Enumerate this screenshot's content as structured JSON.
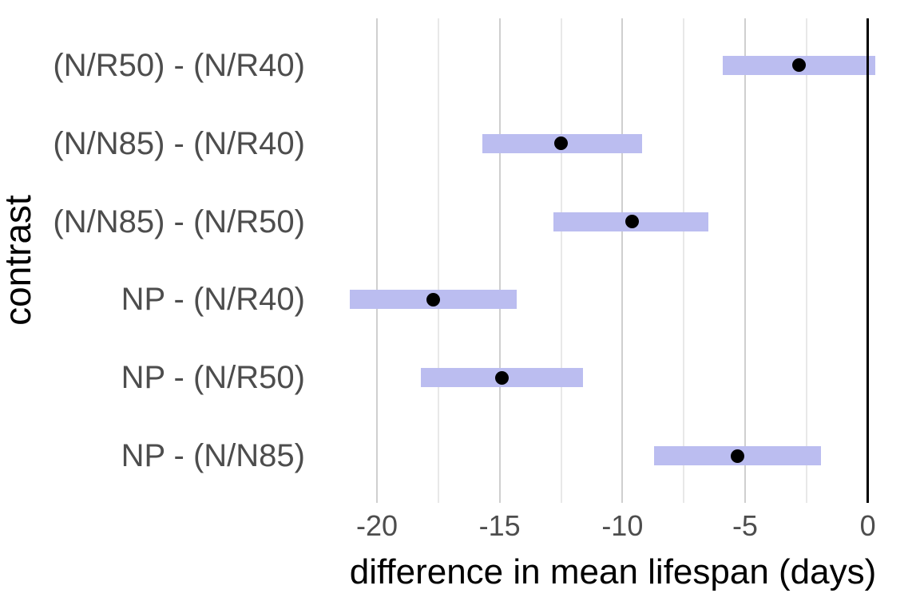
{
  "chart_data": {
    "type": "interval",
    "description": "Pointrange / confidence-interval chart of pairwise contrasts in mean lifespan",
    "title": "",
    "xlabel": "difference in mean lifespan (days)",
    "ylabel": "contrast",
    "categories": [
      "(N/R50) - (N/R40)",
      "(N/N85) - (N/R40)",
      "(N/N85) - (N/R50)",
      "NP - (N/R40)",
      "NP - (N/R50)",
      "NP - (N/N85)"
    ],
    "series": [
      {
        "name": "estimate",
        "values": [
          -2.8,
          -12.5,
          -9.6,
          -17.7,
          -14.9,
          -5.3
        ]
      },
      {
        "name": "ci_lower",
        "values": [
          -5.9,
          -15.7,
          -12.8,
          -21.1,
          -18.2,
          -8.7
        ]
      },
      {
        "name": "ci_upper",
        "values": [
          0.3,
          -9.2,
          -6.5,
          -14.3,
          -11.6,
          -1.9
        ]
      }
    ],
    "x_ticks": [
      -20,
      -15,
      -10,
      -5,
      0
    ],
    "x_tick_labels": [
      "-20",
      "-15",
      "-10",
      "-5",
      "0"
    ],
    "x_minor_ticks": [
      -17.5,
      -12.5,
      -7.5,
      -2.5
    ],
    "xlim": [
      -22.15,
      1.38
    ],
    "reference_line_x": 0,
    "grid": "vertical major+minor, no horizontal",
    "legend": "none",
    "colors": {
      "bar_fill": "#bbbdf0",
      "point": "#000000",
      "major_grid": "#cfcfcf",
      "minor_grid": "#e8e8e8",
      "reference_line": "#000000",
      "tick_text": "#4d4d4d",
      "title_text": "#000000",
      "background": "#ffffff"
    }
  }
}
